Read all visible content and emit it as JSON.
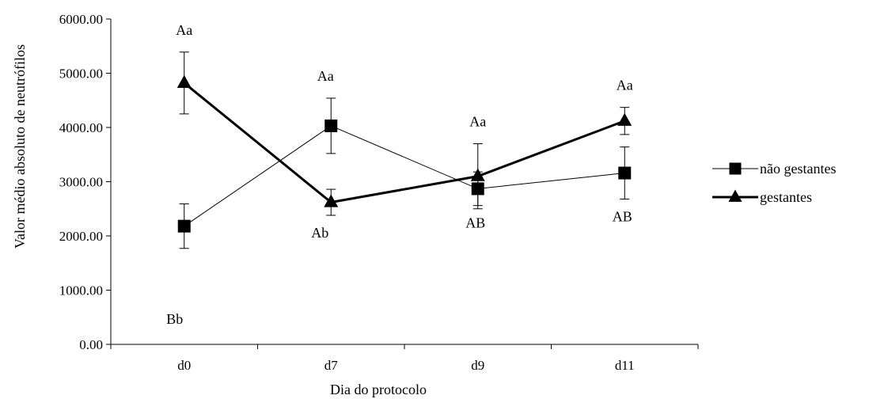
{
  "chart_data": {
    "type": "line",
    "title": "",
    "xlabel": "Dia do protocolo",
    "ylabel": "Valor médio absoluto de neutrófilos",
    "categories": [
      "d0",
      "d7",
      "d9",
      "d11"
    ],
    "ylim": [
      0,
      6000
    ],
    "yticks": [
      0,
      1000,
      2000,
      3000,
      4000,
      5000,
      6000
    ],
    "ytick_labels": [
      "0.00",
      "1000.00",
      "2000.00",
      "3000.00",
      "4000.00",
      "5000.00",
      "6000.00"
    ],
    "grid": false,
    "legend_position": "right",
    "series": [
      {
        "name": "não gestantes",
        "marker": "square",
        "values": [
          2180,
          4030,
          2870,
          3160
        ],
        "error": [
          410,
          510,
          310,
          480
        ],
        "annotations": [
          "Bb",
          "Aa",
          "AB",
          "AB"
        ]
      },
      {
        "name": "gestantes",
        "marker": "triangle",
        "values": [
          4820,
          2620,
          3100,
          4120
        ],
        "error": [
          570,
          240,
          600,
          250
        ],
        "annotations": [
          "Aa",
          "Ab",
          "Aa",
          "Aa"
        ]
      }
    ]
  },
  "colors": {
    "line": "#000000",
    "background": "#ffffff"
  }
}
